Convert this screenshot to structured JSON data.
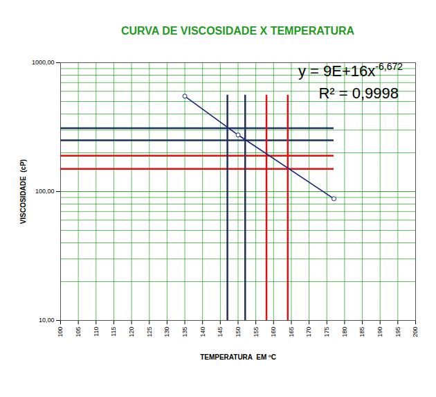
{
  "chart_data": {
    "type": "line",
    "title": "CURVA DE VISCOSIDADE X TEMPERATURA",
    "xlabel": "TEMPERATURA  EM ºC",
    "ylabel": "VISCOSIDADE  (cP)",
    "x": [
      135,
      150,
      177
    ],
    "values": [
      550,
      275,
      88
    ],
    "color": "#1c237a",
    "marker": "circle",
    "log": "y",
    "grid": true,
    "xlim": [
      100,
      200
    ],
    "xticks": [
      100,
      105,
      110,
      115,
      120,
      125,
      130,
      135,
      140,
      145,
      150,
      155,
      160,
      165,
      170,
      175,
      180,
      185,
      190,
      195,
      200
    ],
    "ylim": [
      10,
      1000
    ],
    "yticks": [
      {
        "value": 10,
        "label": "10,00"
      },
      {
        "value": 100,
        "label": "100,00"
      },
      {
        "value": 1000,
        "label": "1000,00"
      }
    ],
    "annotations": [
      {
        "text": "y = 9E+16x",
        "superscript": "-6,672"
      },
      {
        "text": "R² = 0,9998"
      }
    ],
    "hlines": [
      {
        "y": 310,
        "x": [
          100,
          177
        ],
        "color": "#1f2f5e"
      },
      {
        "y": 250,
        "x": [
          100,
          177
        ],
        "color": "#1f2f5e"
      },
      {
        "y": 190,
        "x": [
          100,
          177
        ],
        "color": "#e01010"
      },
      {
        "y": 150,
        "x": [
          100,
          177
        ],
        "color": "#e01010"
      }
    ],
    "vlines": [
      {
        "x": 147,
        "y": [
          10,
          560
        ],
        "color": "#1f2f5e"
      },
      {
        "x": 152,
        "y": [
          10,
          560
        ],
        "color": "#1f2f5e"
      },
      {
        "x": 158,
        "y": [
          10,
          560
        ],
        "color": "#e01010"
      },
      {
        "x": 164,
        "y": [
          10,
          560
        ],
        "color": "#e01010"
      }
    ]
  }
}
